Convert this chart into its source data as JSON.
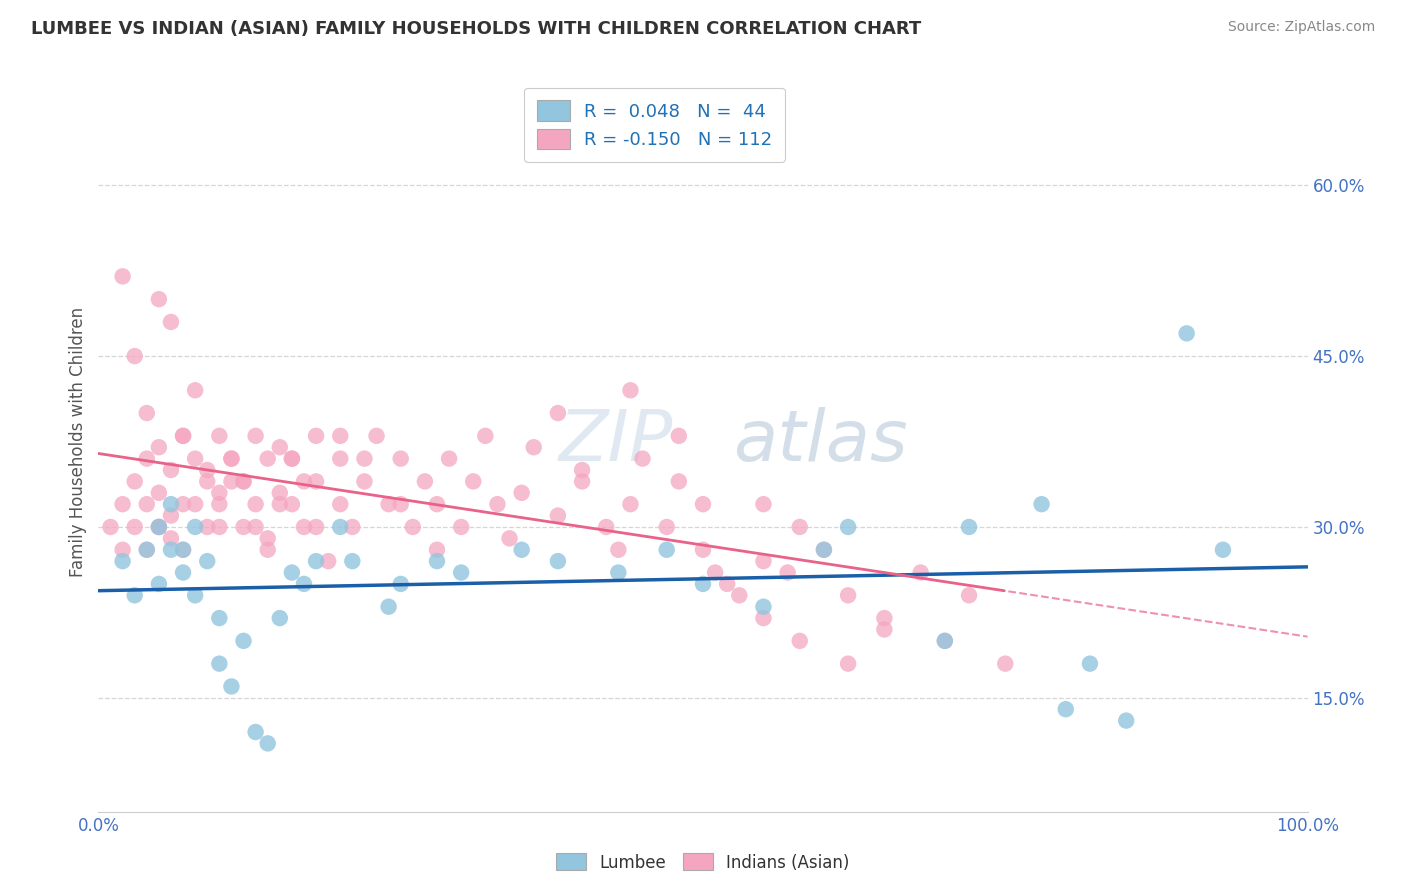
{
  "title": "LUMBEE VS INDIAN (ASIAN) FAMILY HOUSEHOLDS WITH CHILDREN CORRELATION CHART",
  "source": "Source: ZipAtlas.com",
  "ylabel": "Family Households with Children",
  "xlim": [
    0.0,
    1.0
  ],
  "ylim": [
    0.05,
    0.7
  ],
  "yticks": [
    0.15,
    0.3,
    0.45,
    0.6
  ],
  "ytick_labels": [
    "15.0%",
    "30.0%",
    "45.0%",
    "60.0%"
  ],
  "xticks": [
    0.0,
    0.1,
    0.2,
    0.3,
    0.4,
    0.5,
    0.6,
    0.7,
    0.8,
    0.9,
    1.0
  ],
  "xtick_labels": [
    "0.0%",
    "",
    "",
    "",
    "",
    "",
    "",
    "",
    "",
    "",
    "100.0%"
  ],
  "lumbee_R": 0.048,
  "lumbee_N": 44,
  "asian_R": -0.15,
  "asian_N": 112,
  "lumbee_color": "#92c5de",
  "asian_color": "#f4a6c0",
  "lumbee_line_color": "#1a5fa8",
  "asian_line_color": "#e8628a",
  "axis_label_color": "#4472c4",
  "legend_text_color": "#2171b5",
  "title_color": "#333333",
  "source_color": "#888888",
  "grid_color": "#cccccc",
  "background_color": "#ffffff",
  "watermark_text": "ZIPatlas",
  "bottom_legend": [
    "Lumbee",
    "Indians (Asian)"
  ],
  "lumbee_x": [
    0.02,
    0.03,
    0.04,
    0.05,
    0.05,
    0.06,
    0.06,
    0.07,
    0.07,
    0.08,
    0.08,
    0.09,
    0.1,
    0.1,
    0.11,
    0.12,
    0.13,
    0.14,
    0.15,
    0.16,
    0.17,
    0.18,
    0.2,
    0.21,
    0.24,
    0.25,
    0.28,
    0.3,
    0.35,
    0.38,
    0.43,
    0.47,
    0.5,
    0.55,
    0.6,
    0.62,
    0.7,
    0.72,
    0.78,
    0.8,
    0.82,
    0.85,
    0.9,
    0.93
  ],
  "lumbee_y": [
    0.27,
    0.24,
    0.28,
    0.3,
    0.25,
    0.28,
    0.32,
    0.26,
    0.28,
    0.24,
    0.3,
    0.27,
    0.22,
    0.18,
    0.16,
    0.2,
    0.12,
    0.11,
    0.22,
    0.26,
    0.25,
    0.27,
    0.3,
    0.27,
    0.23,
    0.25,
    0.27,
    0.26,
    0.28,
    0.27,
    0.26,
    0.28,
    0.25,
    0.23,
    0.28,
    0.3,
    0.2,
    0.3,
    0.32,
    0.14,
    0.18,
    0.13,
    0.47,
    0.28
  ],
  "asian_x": [
    0.01,
    0.02,
    0.02,
    0.03,
    0.03,
    0.04,
    0.04,
    0.04,
    0.05,
    0.05,
    0.05,
    0.06,
    0.06,
    0.06,
    0.07,
    0.07,
    0.07,
    0.08,
    0.08,
    0.09,
    0.09,
    0.1,
    0.1,
    0.1,
    0.11,
    0.11,
    0.12,
    0.12,
    0.13,
    0.13,
    0.14,
    0.14,
    0.15,
    0.15,
    0.16,
    0.16,
    0.17,
    0.18,
    0.18,
    0.19,
    0.2,
    0.2,
    0.21,
    0.22,
    0.23,
    0.24,
    0.25,
    0.26,
    0.27,
    0.28,
    0.29,
    0.3,
    0.31,
    0.32,
    0.33,
    0.34,
    0.35,
    0.36,
    0.38,
    0.4,
    0.42,
    0.43,
    0.44,
    0.45,
    0.47,
    0.48,
    0.5,
    0.51,
    0.53,
    0.55,
    0.57,
    0.58,
    0.6,
    0.62,
    0.65,
    0.68,
    0.7,
    0.72,
    0.75,
    0.55,
    0.38,
    0.4,
    0.44,
    0.48,
    0.5,
    0.52,
    0.55,
    0.58,
    0.62,
    0.65,
    0.02,
    0.03,
    0.04,
    0.05,
    0.05,
    0.06,
    0.07,
    0.08,
    0.09,
    0.1,
    0.11,
    0.12,
    0.13,
    0.14,
    0.15,
    0.16,
    0.17,
    0.18,
    0.2,
    0.22,
    0.25,
    0.28
  ],
  "asian_y": [
    0.3,
    0.32,
    0.28,
    0.34,
    0.3,
    0.32,
    0.36,
    0.28,
    0.3,
    0.33,
    0.37,
    0.31,
    0.35,
    0.29,
    0.32,
    0.38,
    0.28,
    0.32,
    0.36,
    0.3,
    0.34,
    0.38,
    0.32,
    0.3,
    0.34,
    0.36,
    0.3,
    0.34,
    0.38,
    0.32,
    0.36,
    0.29,
    0.33,
    0.37,
    0.32,
    0.36,
    0.3,
    0.34,
    0.38,
    0.27,
    0.32,
    0.36,
    0.3,
    0.34,
    0.38,
    0.32,
    0.36,
    0.3,
    0.34,
    0.32,
    0.36,
    0.3,
    0.34,
    0.38,
    0.32,
    0.29,
    0.33,
    0.37,
    0.31,
    0.34,
    0.3,
    0.28,
    0.32,
    0.36,
    0.3,
    0.34,
    0.32,
    0.26,
    0.24,
    0.32,
    0.26,
    0.3,
    0.28,
    0.24,
    0.22,
    0.26,
    0.2,
    0.24,
    0.18,
    0.27,
    0.4,
    0.35,
    0.42,
    0.38,
    0.28,
    0.25,
    0.22,
    0.2,
    0.18,
    0.21,
    0.52,
    0.45,
    0.4,
    0.5,
    0.3,
    0.48,
    0.38,
    0.42,
    0.35,
    0.33,
    0.36,
    0.34,
    0.3,
    0.28,
    0.32,
    0.36,
    0.34,
    0.3,
    0.38,
    0.36,
    0.32,
    0.28
  ]
}
